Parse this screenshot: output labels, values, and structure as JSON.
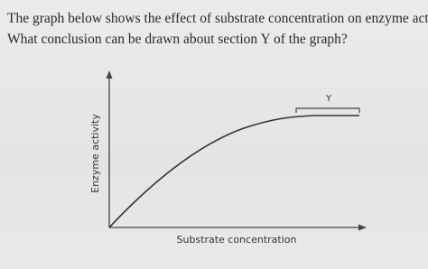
{
  "question": {
    "lines": [
      "The graph below shows the effect of substrate concentration on enzyme activity.",
      "What conclusion can be drawn about section Y of the graph?"
    ]
  },
  "graph": {
    "y_axis_label": "Enzyme activity",
    "x_axis_label": "Substrate concentration",
    "section_label": "Y"
  }
}
